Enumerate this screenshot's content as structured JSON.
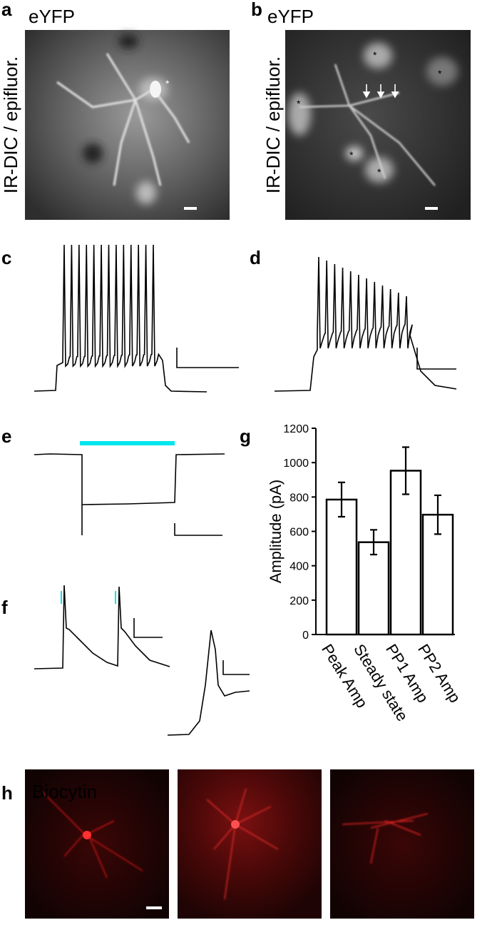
{
  "panel_labels": [
    "a",
    "b",
    "c",
    "d",
    "e",
    "f",
    "g",
    "h"
  ],
  "images": [
    {
      "title": "eYFP",
      "side_label": "IR-DIC / epifluor.",
      "markers": [
        "*"
      ]
    },
    {
      "title": "eYFP",
      "side_label": "IR-DIC / epifluor.",
      "markers": [
        "*",
        "*",
        "*",
        "*",
        "*"
      ]
    }
  ],
  "biocytin_title": "Biocytin",
  "chart_data": {
    "type": "bar",
    "categories": [
      "Peak Amp",
      "Steady state",
      "PP1 Amp",
      "PP2 Amp"
    ],
    "values": [
      785,
      537,
      953,
      697
    ],
    "errors": [
      100,
      72,
      137,
      113
    ],
    "color": "#ffffff",
    "ylabel": "Amplitude (pA)",
    "ylim": [
      0,
      1200
    ],
    "yticks": [
      0,
      200,
      400,
      600,
      800,
      1000,
      1200
    ]
  }
}
